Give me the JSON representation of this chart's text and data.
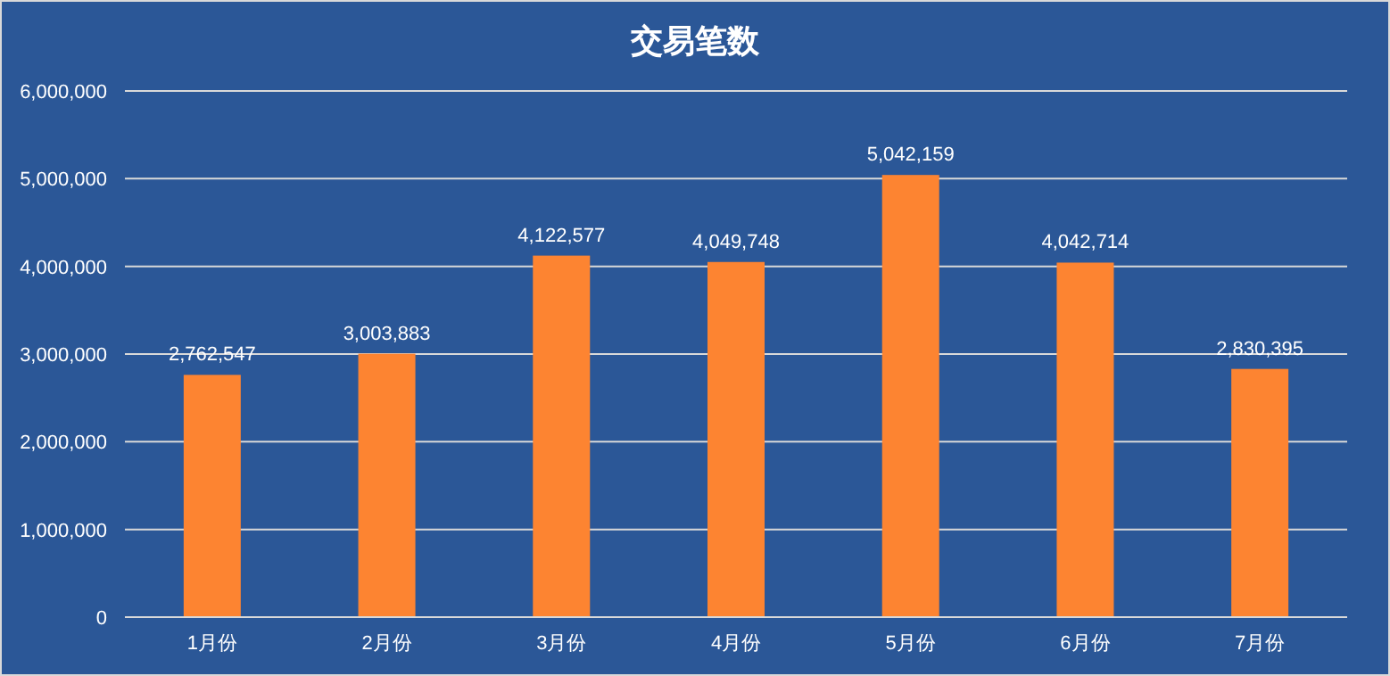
{
  "chart_data": {
    "type": "bar",
    "title": "交易笔数",
    "categories": [
      "1月份",
      "2月份",
      "3月份",
      "4月份",
      "5月份",
      "6月份",
      "7月份"
    ],
    "values": [
      2762547,
      3003883,
      4122577,
      4049748,
      5042159,
      4042714,
      2830395
    ],
    "value_labels": [
      "2,762,547",
      "3,003,883",
      "4,122,577",
      "4,049,748",
      "5,042,159",
      "4,042,714",
      "2,830,395"
    ],
    "color": "#fd8431",
    "ylim": [
      0,
      6000000
    ],
    "yticks": [
      {
        "value": 0,
        "label": "0"
      },
      {
        "value": 1000000,
        "label": "1,000,000"
      },
      {
        "value": 2000000,
        "label": "2,000,000"
      },
      {
        "value": 3000000,
        "label": "3,000,000"
      },
      {
        "value": 4000000,
        "label": "4,000,000"
      },
      {
        "value": 5000000,
        "label": "5,000,000"
      },
      {
        "value": 6000000,
        "label": "6,000,000"
      }
    ],
    "grid": "y"
  }
}
